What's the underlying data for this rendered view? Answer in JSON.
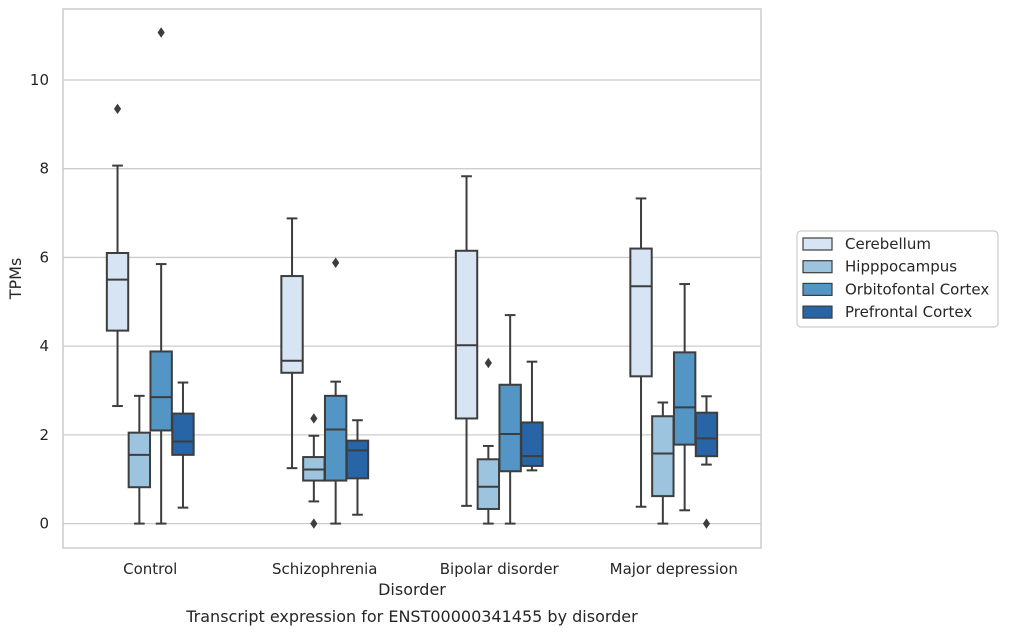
{
  "chart_data": {
    "type": "box",
    "title": "Transcript expression for ENST00000341455 by disorder",
    "xlabel": "Disorder",
    "ylabel": "TPMs",
    "categories": [
      "Control",
      "Schizophrenia",
      "Bipolar disorder",
      "Major depression"
    ],
    "yticks": [
      0,
      2,
      4,
      6,
      8,
      10
    ],
    "ylim": [
      -0.55,
      11.6
    ],
    "grid": "horizontal",
    "legend_position": "right",
    "series": [
      {
        "name": "Cerebellum",
        "color": "#d6e4f3",
        "boxes": [
          {
            "whislo": 2.65,
            "q1": 4.35,
            "med": 5.5,
            "q3": 6.1,
            "whishi": 8.07,
            "fliers": [
              9.35
            ]
          },
          {
            "whislo": 1.25,
            "q1": 3.4,
            "med": 3.67,
            "q3": 5.58,
            "whishi": 6.88,
            "fliers": []
          },
          {
            "whislo": 0.4,
            "q1": 2.37,
            "med": 4.02,
            "q3": 6.15,
            "whishi": 7.83,
            "fliers": []
          },
          {
            "whislo": 0.38,
            "q1": 3.32,
            "med": 5.35,
            "q3": 6.2,
            "whishi": 7.33,
            "fliers": []
          }
        ]
      },
      {
        "name": "Hipppocampus",
        "color": "#9cc4df",
        "boxes": [
          {
            "whislo": 0.0,
            "q1": 0.82,
            "med": 1.55,
            "q3": 2.05,
            "whishi": 2.88,
            "fliers": []
          },
          {
            "whislo": 0.5,
            "q1": 0.97,
            "med": 1.22,
            "q3": 1.5,
            "whishi": 1.98,
            "fliers": [
              2.37,
              0.0
            ]
          },
          {
            "whislo": 0.0,
            "q1": 0.33,
            "med": 0.83,
            "q3": 1.45,
            "whishi": 1.75,
            "fliers": [
              3.62
            ]
          },
          {
            "whislo": 0.0,
            "q1": 0.62,
            "med": 1.58,
            "q3": 2.42,
            "whishi": 2.73,
            "fliers": []
          }
        ]
      },
      {
        "name": "Orbitofontal Cortex",
        "color": "#5396c5",
        "boxes": [
          {
            "whislo": 0.0,
            "q1": 2.1,
            "med": 2.85,
            "q3": 3.88,
            "whishi": 5.85,
            "fliers": [
              11.07
            ]
          },
          {
            "whislo": 0.0,
            "q1": 0.97,
            "med": 2.12,
            "q3": 2.88,
            "whishi": 3.2,
            "fliers": [
              5.88
            ]
          },
          {
            "whislo": 0.0,
            "q1": 1.18,
            "med": 2.02,
            "q3": 3.13,
            "whishi": 4.7,
            "fliers": []
          },
          {
            "whislo": 0.3,
            "q1": 1.78,
            "med": 2.62,
            "q3": 3.86,
            "whishi": 5.4,
            "fliers": []
          }
        ]
      },
      {
        "name": "Prefrontal Cortex",
        "color": "#2865a7",
        "boxes": [
          {
            "whislo": 0.36,
            "q1": 1.55,
            "med": 1.85,
            "q3": 2.48,
            "whishi": 3.18,
            "fliers": []
          },
          {
            "whislo": 0.2,
            "q1": 1.02,
            "med": 1.65,
            "q3": 1.87,
            "whishi": 2.33,
            "fliers": []
          },
          {
            "whislo": 1.2,
            "q1": 1.3,
            "med": 1.52,
            "q3": 2.28,
            "whishi": 3.65,
            "fliers": []
          },
          {
            "whislo": 1.33,
            "q1": 1.52,
            "med": 1.92,
            "q3": 2.5,
            "whishi": 2.87,
            "fliers": [
              0.0
            ]
          }
        ]
      }
    ]
  }
}
